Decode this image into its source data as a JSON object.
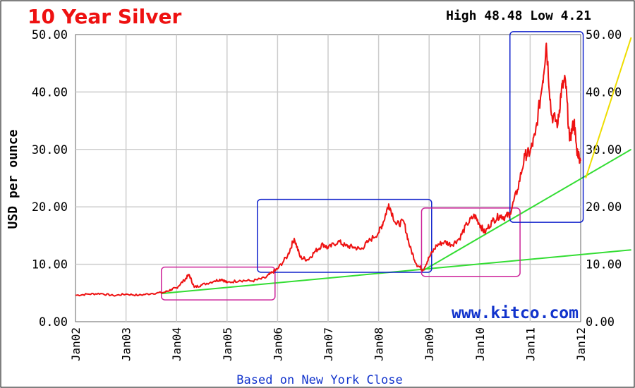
{
  "chart_data": {
    "type": "line",
    "title": "10 Year Silver",
    "high_low": "High 48.48 Low 4.21",
    "ylabel": "USD per ounce",
    "xlabel": "Based on New York Close",
    "watermark": "www.kitco.com",
    "ylim": [
      0,
      50
    ],
    "y_ticks": [
      "0.00",
      "10.00",
      "20.00",
      "30.00",
      "40.00",
      "50.00"
    ],
    "x_ticks": [
      "Jan02",
      "Jan03",
      "Jan04",
      "Jan05",
      "Jan06",
      "Jan07",
      "Jan08",
      "Jan09",
      "Jan10",
      "Jan11",
      "Jan12"
    ],
    "xlim": [
      2002.0,
      2012.0
    ],
    "grid": true,
    "series": [
      {
        "color": "#ee1111",
        "points": [
          [
            2002.0,
            4.6
          ],
          [
            2002.25,
            4.8
          ],
          [
            2002.5,
            4.9
          ],
          [
            2002.75,
            4.55
          ],
          [
            2003.0,
            4.8
          ],
          [
            2003.25,
            4.6
          ],
          [
            2003.5,
            4.9
          ],
          [
            2003.75,
            5.1
          ],
          [
            2003.9,
            5.6
          ],
          [
            2004.0,
            5.9
          ],
          [
            2004.15,
            7.2
          ],
          [
            2004.25,
            8.2
          ],
          [
            2004.35,
            6.0
          ],
          [
            2004.5,
            6.4
          ],
          [
            2004.75,
            7.1
          ],
          [
            2004.9,
            7.4
          ],
          [
            2005.0,
            6.8
          ],
          [
            2005.25,
            7.2
          ],
          [
            2005.5,
            7.1
          ],
          [
            2005.75,
            7.6
          ],
          [
            2005.9,
            8.6
          ],
          [
            2006.0,
            9.2
          ],
          [
            2006.2,
            11.5
          ],
          [
            2006.33,
            14.5
          ],
          [
            2006.45,
            11.2
          ],
          [
            2006.6,
            10.8
          ],
          [
            2006.75,
            12.3
          ],
          [
            2006.9,
            13.5
          ],
          [
            2007.0,
            12.8
          ],
          [
            2007.2,
            14.0
          ],
          [
            2007.35,
            13.2
          ],
          [
            2007.5,
            13.0
          ],
          [
            2007.65,
            12.6
          ],
          [
            2007.8,
            14.0
          ],
          [
            2008.0,
            15.5
          ],
          [
            2008.1,
            17.5
          ],
          [
            2008.2,
            20.5
          ],
          [
            2008.35,
            16.9
          ],
          [
            2008.5,
            17.4
          ],
          [
            2008.62,
            13.0
          ],
          [
            2008.75,
            10.0
          ],
          [
            2008.88,
            9.0
          ],
          [
            2009.0,
            11.2
          ],
          [
            2009.15,
            13.3
          ],
          [
            2009.3,
            13.9
          ],
          [
            2009.45,
            13.4
          ],
          [
            2009.6,
            14.5
          ],
          [
            2009.75,
            17.0
          ],
          [
            2009.9,
            18.5
          ],
          [
            2010.0,
            17.0
          ],
          [
            2010.1,
            15.5
          ],
          [
            2010.25,
            17.5
          ],
          [
            2010.4,
            18.5
          ],
          [
            2010.5,
            18.2
          ],
          [
            2010.6,
            18.8
          ],
          [
            2010.75,
            23.0
          ],
          [
            2010.9,
            29.0
          ],
          [
            2011.0,
            29.5
          ],
          [
            2011.1,
            32.5
          ],
          [
            2011.25,
            42.0
          ],
          [
            2011.32,
            48.48
          ],
          [
            2011.42,
            36.0
          ],
          [
            2011.55,
            34.5
          ],
          [
            2011.62,
            40.5
          ],
          [
            2011.7,
            42.0
          ],
          [
            2011.78,
            31.5
          ],
          [
            2011.87,
            35.0
          ],
          [
            2011.92,
            30.0
          ],
          [
            2012.0,
            28.0
          ]
        ]
      }
    ],
    "trendlines": [
      {
        "color": "#33dd33",
        "points": [
          [
            2003.7,
            4.9
          ],
          [
            2013.0,
            12.5
          ]
        ]
      },
      {
        "color": "#33dd33",
        "points": [
          [
            2008.9,
            9.0
          ],
          [
            2013.0,
            30.0
          ]
        ]
      },
      {
        "color": "#eedd00",
        "points": [
          [
            2012.1,
            25.0
          ],
          [
            2013.0,
            49.5
          ]
        ]
      }
    ],
    "boxes": [
      {
        "color": "#cc2299",
        "x": [
          2003.7,
          2005.95
        ],
        "y": [
          3.8,
          9.5
        ]
      },
      {
        "color": "#1122cc",
        "x": [
          2005.6,
          2009.05
        ],
        "y": [
          8.6,
          21.3
        ]
      },
      {
        "color": "#cc2299",
        "x": [
          2008.85,
          2010.8
        ],
        "y": [
          7.9,
          19.8
        ]
      },
      {
        "color": "#1122cc",
        "x": [
          2010.6,
          2012.05
        ],
        "y": [
          17.3,
          50.5
        ]
      }
    ],
    "colors": {
      "title": "#ee1111",
      "line": "#ee1111",
      "watermark": "#1133cc",
      "footer": "#1133cc",
      "grid": "#cccccc"
    }
  }
}
